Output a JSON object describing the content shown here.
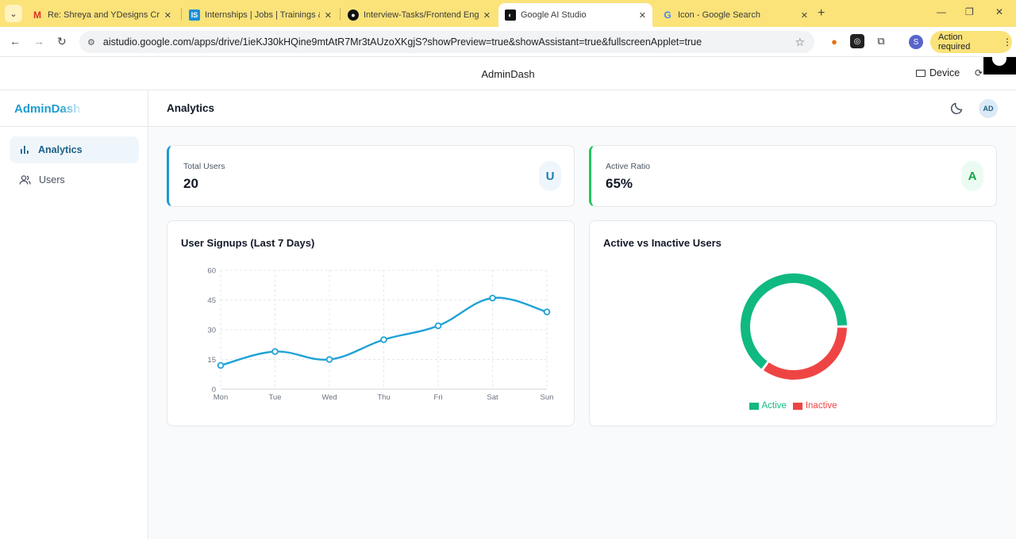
{
  "browser": {
    "tabs": [
      {
        "label": "Re: Shreya and YDesigns Creati",
        "icon": "gmail-icon",
        "active": false
      },
      {
        "label": "Internships | Jobs | Trainings & I",
        "icon": "internshala-icon",
        "active": false
      },
      {
        "label": "Interview-Tasks/Frontend Engin",
        "icon": "github-icon",
        "active": false
      },
      {
        "label": "Google AI Studio",
        "icon": "ai-studio-icon",
        "active": true
      },
      {
        "label": "Icon - Google Search",
        "icon": "google-icon",
        "active": false
      }
    ],
    "url": "aistudio.google.com/apps/drive/1ieKJ30kHQine9mtAtR7Mr3tAUzoXKgjS?showPreview=true&showAssistant=true&fullscreenApplet=true",
    "profile_initial": "S",
    "action_required": "Action required"
  },
  "preview": {
    "title": "AdminDash",
    "device_label": "Device"
  },
  "app": {
    "brand": "AdminDash",
    "nav": [
      {
        "label": "Analytics",
        "icon": "bar-chart-icon",
        "active": true
      },
      {
        "label": "Users",
        "icon": "users-icon",
        "active": false
      }
    ],
    "page_title": "Analytics",
    "avatar": "AD",
    "stats": [
      {
        "label": "Total Users",
        "value": "20",
        "badge": "U",
        "accent": "#1a9bd0"
      },
      {
        "label": "Active Ratio",
        "value": "65%",
        "badge": "A",
        "accent": "#22c55e"
      }
    ]
  },
  "chart_data": [
    {
      "type": "line",
      "title": "User Signups (Last 7 Days)",
      "categories": [
        "Mon",
        "Tue",
        "Wed",
        "Thu",
        "Fri",
        "Sat",
        "Sun"
      ],
      "values": [
        12,
        19,
        15,
        25,
        32,
        46,
        39
      ],
      "yticks": [
        "0",
        "15",
        "30",
        "45",
        "60"
      ],
      "ylim": [
        0,
        60
      ],
      "grid": true,
      "color": "#1fa2d6"
    },
    {
      "type": "pie",
      "title": "Active vs Inactive Users",
      "donut": true,
      "labels": [
        "Active",
        "Inactive"
      ],
      "values": [
        65,
        35
      ],
      "colors": [
        "#10b981",
        "#ef4444"
      ],
      "legend": "bottom"
    }
  ]
}
